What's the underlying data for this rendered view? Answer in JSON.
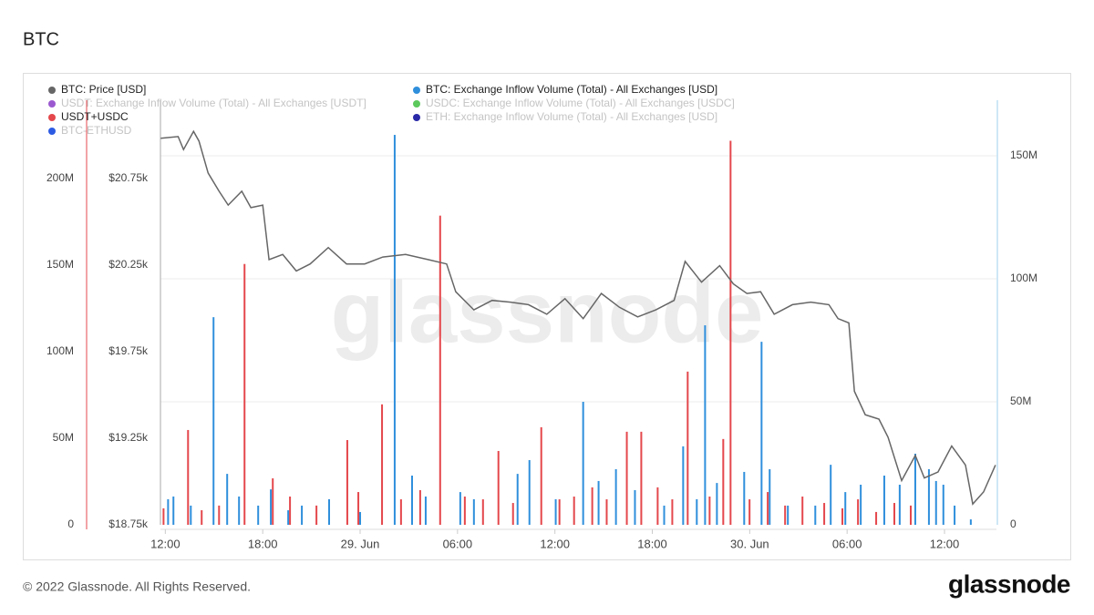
{
  "chart_data": {
    "type": "combo",
    "title": "BTC",
    "watermark": "glassnode",
    "footer": "© 2022 Glassnode. All Rights Reserved.",
    "logo": "glassnode",
    "xlim": [
      11.7,
      63.2
    ],
    "xticks": [
      {
        "value": 12,
        "label": "12:00"
      },
      {
        "value": 18,
        "label": "18:00"
      },
      {
        "value": 24,
        "label": "29. Jun"
      },
      {
        "value": 30,
        "label": "06:00"
      },
      {
        "value": 36,
        "label": "12:00"
      },
      {
        "value": 42,
        "label": "18:00"
      },
      {
        "value": 48,
        "label": "30. Jun"
      },
      {
        "value": 54,
        "label": "06:00"
      },
      {
        "value": 60,
        "label": "12:00"
      }
    ],
    "ylim": [
      18750,
      21200
    ],
    "yticks": [
      {
        "value": 18750,
        "label": "$18.75k"
      },
      {
        "value": 19250,
        "label": "$19.25k"
      },
      {
        "value": 19750,
        "label": "$19.75k"
      },
      {
        "value": 20250,
        "label": "$20.25k"
      },
      {
        "value": 20750,
        "label": "$20.75k"
      }
    ],
    "y2lim": [
      0,
      172600000
    ],
    "y2ticks": [
      0,
      {
        "value": 50000000,
        "label": "50M"
      },
      {
        "value": 100000000,
        "label": "100M"
      },
      {
        "value": 150000000,
        "label": "150M"
      }
    ],
    "y3lim": [
      0,
      245000000
    ],
    "y3ticks": [
      0,
      {
        "value": 50000000,
        "label": "50M"
      },
      {
        "value": 100000000,
        "label": "100M"
      },
      {
        "value": 150000000,
        "label": "150M"
      },
      {
        "value": 200000000,
        "label": "200M"
      }
    ],
    "grid": true,
    "series": [
      {
        "name": "BTC: Price [USD]",
        "color": "#666666",
        "type": "line",
        "axis": "y",
        "x": [
          11.72,
          12.79,
          13.12,
          13.74,
          14.07,
          14.64,
          15.31,
          15.87,
          16.71,
          17.27,
          18.0,
          18.39,
          19.23,
          20.07,
          20.92,
          22.04,
          23.16,
          24.28,
          25.4,
          26.8,
          28.21,
          29.33,
          29.89,
          31.01,
          32.13,
          33.25,
          34.37,
          35.5,
          36.62,
          37.74,
          38.86,
          39.98,
          41.1,
          42.22,
          43.34,
          44.02,
          45.03,
          46.15,
          46.99,
          47.83,
          48.67,
          49.51,
          50.63,
          51.76,
          52.88,
          53.44,
          54.11,
          54.45,
          55.12,
          55.96,
          56.52,
          57.36,
          58.2,
          58.76,
          59.6,
          60.44,
          61.29,
          61.74,
          62.41,
          63.14
        ],
        "values": [
          20980,
          20990,
          20915,
          21020,
          20965,
          20780,
          20675,
          20595,
          20675,
          20580,
          20595,
          20280,
          20310,
          20215,
          20255,
          20350,
          20255,
          20255,
          20295,
          20310,
          20280,
          20255,
          20095,
          19990,
          20045,
          20035,
          20020,
          19965,
          20055,
          19940,
          20085,
          20005,
          19950,
          19990,
          20045,
          20270,
          20150,
          20245,
          20140,
          20085,
          20095,
          19965,
          20020,
          20035,
          20020,
          19940,
          19915,
          19520,
          19385,
          19360,
          19255,
          19005,
          19150,
          19020,
          19055,
          19205,
          19095,
          18870,
          18940,
          19095
        ]
      },
      {
        "name": "USDT: Exchange Inflow Volume (Total) - All Exchanges [USDT]",
        "color": "#9b59d0",
        "hidden": true
      },
      {
        "name": "USDT+USDC",
        "color": "#e4474c",
        "type": "bar",
        "axis": "y3",
        "x": [
          11.89,
          13.4,
          14.24,
          15.31,
          16.88,
          18.62,
          19.68,
          21.31,
          23.21,
          23.89,
          25.35,
          26.52,
          27.7,
          28.93,
          30.45,
          31.57,
          32.52,
          33.42,
          35.16,
          36.28,
          37.18,
          38.3,
          39.19,
          40.43,
          41.32,
          42.33,
          43.23,
          44.18,
          45.53,
          46.37,
          46.82,
          47.99,
          49.11,
          50.18,
          51.25,
          52.59,
          53.71,
          54.67,
          55.79,
          56.91,
          57.92
        ],
        "values": [
          9500000,
          54700000,
          8400000,
          11100000,
          150500000,
          26800000,
          16300000,
          11100000,
          48900000,
          18900000,
          69500000,
          14700000,
          20000000,
          178400000,
          16300000,
          14700000,
          42600000,
          12600000,
          56300000,
          14700000,
          16300000,
          21600000,
          14700000,
          53700000,
          53700000,
          21600000,
          14700000,
          88400000,
          16300000,
          49500000,
          221600000,
          14700000,
          18900000,
          11100000,
          16300000,
          12600000,
          9500000,
          14700000,
          7400000,
          12600000,
          11100000
        ]
      },
      {
        "name": "BTC-ETHUSD",
        "color": "#2d5be3",
        "hidden": true
      },
      {
        "name": "BTC: Exchange Inflow Volume (Total) - All Exchanges [USD]",
        "color": "#2f8fdc",
        "type": "bar",
        "axis": "y2",
        "x": [
          12.17,
          12.5,
          13.57,
          14.97,
          15.81,
          16.54,
          17.72,
          18.5,
          19.57,
          20.41,
          22.09,
          24.0,
          26.13,
          27.2,
          28.04,
          30.17,
          31.01,
          33.7,
          34.43,
          36.05,
          37.74,
          38.69,
          39.76,
          40.93,
          42.73,
          43.9,
          44.74,
          45.25,
          45.98,
          47.66,
          48.73,
          49.23,
          50.35,
          52.04,
          52.99,
          53.89,
          54.84,
          56.29,
          57.24,
          58.2,
          59.04,
          59.48,
          59.93,
          60.62,
          61.62
        ],
        "values": [
          10400000,
          11500000,
          7800000,
          84400000,
          20700000,
          11500000,
          7800000,
          14400000,
          5900000,
          7800000,
          10400000,
          5200000,
          158500000,
          20000000,
          11500000,
          13300000,
          10400000,
          20700000,
          26300000,
          10400000,
          50000000,
          17800000,
          22600000,
          14100000,
          7800000,
          31900000,
          10400000,
          81100000,
          17000000,
          21500000,
          74400000,
          22600000,
          7800000,
          7800000,
          24400000,
          13300000,
          16300000,
          20000000,
          16300000,
          28900000,
          22600000,
          17800000,
          16300000,
          7800000,
          2200000
        ]
      },
      {
        "name": "USDC: Exchange Inflow Volume (Total) - All Exchanges [USDC]",
        "color": "#5cc95c",
        "hidden": true
      },
      {
        "name": "ETH: Exchange Inflow Volume (Total) - All Exchanges [USD]",
        "color": "#2a2aa8",
        "hidden": true
      }
    ]
  }
}
